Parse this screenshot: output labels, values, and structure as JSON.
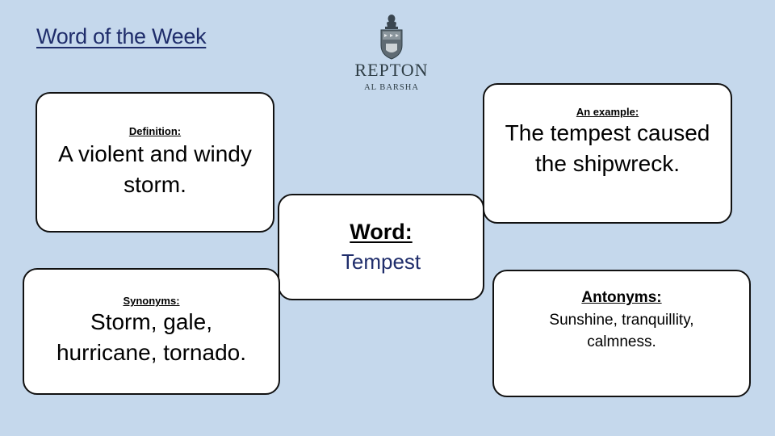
{
  "title": "Word of the Week",
  "logo": {
    "name": "Repton",
    "subtitle": "AL BARSHA"
  },
  "definition": {
    "label": "Definition:",
    "text": "A violent and windy storm."
  },
  "example": {
    "label": "An example:",
    "text": "The tempest caused the shipwreck."
  },
  "word": {
    "label": "Word:",
    "value": "Tempest"
  },
  "synonyms": {
    "label": "Synonyms:",
    "text": "Storm, gale, hurricane, tornado."
  },
  "antonyms": {
    "label": "Antonyms:",
    "text": "Sunshine, tranquillity, calmness."
  },
  "colors": {
    "background": "#c5d8ec",
    "title": "#1f2d6b",
    "word": "#1f2d6b",
    "card_border": "#111111"
  }
}
